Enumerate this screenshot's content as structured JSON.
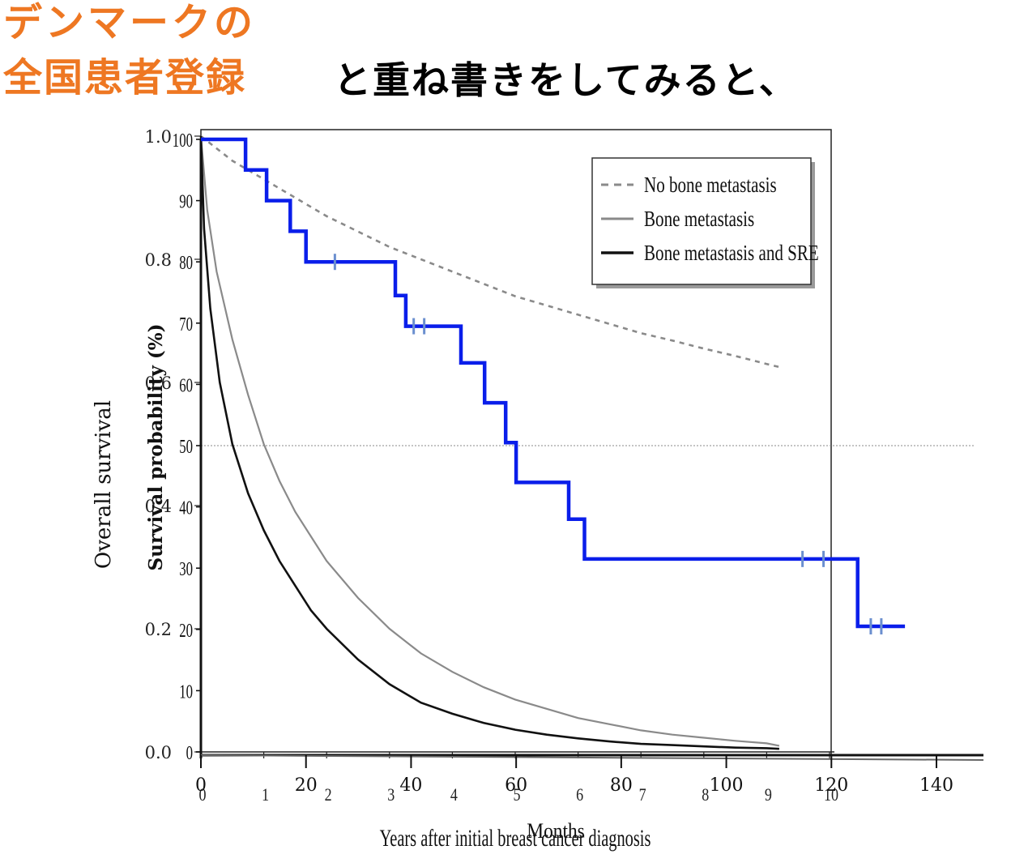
{
  "title": {
    "line1": "デンマークの",
    "line2": "全国患者登録",
    "overlay_note": "と重ね書きをしてみると、",
    "color": "#ee7722"
  },
  "chart_data": [
    {
      "type": "line",
      "role": "background",
      "ylabel": "Overall survival",
      "xlabel": "Years after initial breast cancer diagnosis",
      "xlim": [
        0,
        10
      ],
      "ylim": [
        0.0,
        1.0
      ],
      "x_ticks": [
        "0",
        "1",
        "2",
        "3",
        "4",
        "5",
        "6",
        "7",
        "8",
        "9",
        "10"
      ],
      "y_ticks": [
        "0.0",
        "0.2",
        "0.4",
        "0.6",
        "0.8",
        "1.0"
      ],
      "legend": {
        "placement": "top-right",
        "entries": [
          "No bone metastasis",
          "Bone metastasis",
          "Bone metastasis and SRE"
        ]
      },
      "series": [
        {
          "name": "No bone metastasis",
          "style": "dashed",
          "color": "#8a8a8a",
          "x": [
            0,
            0.5,
            1,
            1.5,
            2,
            2.5,
            3,
            3.5,
            4,
            4.5,
            5,
            5.5,
            6,
            6.5,
            7,
            7.5,
            8,
            8.5,
            9,
            9.2
          ],
          "y": [
            1.0,
            0.96,
            0.93,
            0.9,
            0.87,
            0.845,
            0.82,
            0.8,
            0.78,
            0.76,
            0.74,
            0.725,
            0.71,
            0.695,
            0.68,
            0.668,
            0.655,
            0.643,
            0.63,
            0.625
          ]
        },
        {
          "name": "Bone metastasis",
          "style": "solid",
          "color": "#8a8a8a",
          "x": [
            0,
            0.1,
            0.25,
            0.5,
            0.75,
            1,
            1.25,
            1.5,
            1.75,
            2,
            2.5,
            3,
            3.5,
            4,
            4.5,
            5,
            5.5,
            6,
            6.5,
            7,
            7.5,
            8,
            8.5,
            9,
            9.2
          ],
          "y": [
            1.0,
            0.88,
            0.78,
            0.67,
            0.58,
            0.5,
            0.44,
            0.39,
            0.35,
            0.31,
            0.25,
            0.2,
            0.16,
            0.13,
            0.105,
            0.085,
            0.07,
            0.055,
            0.045,
            0.035,
            0.028,
            0.023,
            0.018,
            0.014,
            0.01
          ]
        },
        {
          "name": "Bone metastasis and SRE",
          "style": "solid",
          "color": "#111111",
          "x": [
            0,
            0.05,
            0.15,
            0.3,
            0.5,
            0.75,
            1,
            1.25,
            1.5,
            1.75,
            2,
            2.5,
            3,
            3.5,
            4,
            4.5,
            5,
            5.5,
            6,
            6.5,
            7,
            7.5,
            8,
            8.5,
            9,
            9.2
          ],
          "y": [
            1.0,
            0.85,
            0.72,
            0.6,
            0.5,
            0.42,
            0.36,
            0.31,
            0.27,
            0.23,
            0.2,
            0.15,
            0.11,
            0.08,
            0.062,
            0.047,
            0.036,
            0.028,
            0.022,
            0.017,
            0.013,
            0.011,
            0.009,
            0.007,
            0.006,
            0.005
          ]
        }
      ]
    },
    {
      "type": "line",
      "role": "overlay-kaplan-meier",
      "ylabel": "Survival probability (%)",
      "xlabel": "Months",
      "xlim": [
        0,
        140
      ],
      "ylim": [
        0,
        100
      ],
      "x_ticks": [
        "0",
        "20",
        "40",
        "60",
        "80",
        "100",
        "120",
        "140"
      ],
      "y_ticks": [
        "0",
        "10",
        "20",
        "30",
        "40",
        "50",
        "60",
        "70",
        "80",
        "90",
        "100"
      ],
      "reference_line_y": 50,
      "series": [
        {
          "style": "step",
          "color": "#0a1eea",
          "x": [
            0,
            8.5,
            8.5,
            12.5,
            12.5,
            17,
            17,
            20,
            20,
            37,
            37,
            39,
            39,
            49.5,
            49.5,
            54,
            54,
            58,
            58,
            60,
            60,
            70,
            70,
            73,
            73,
            125,
            125,
            134
          ],
          "y": [
            100,
            100,
            95,
            95,
            90,
            90,
            85,
            85,
            80,
            80,
            74.5,
            74.5,
            69.5,
            69.5,
            63.5,
            63.5,
            57,
            57,
            50.5,
            50.5,
            44,
            44,
            38,
            38,
            31.5,
            31.5,
            20.5,
            20.5
          ]
        }
      ],
      "censor_marks": {
        "color": "#6b8fcf",
        "x": [
          25.5,
          40.5,
          42.5,
          114.5,
          118.5,
          127.5,
          129.5
        ],
        "y": [
          80,
          69.5,
          69.5,
          31.5,
          31.5,
          20.5,
          20.5
        ]
      }
    }
  ]
}
